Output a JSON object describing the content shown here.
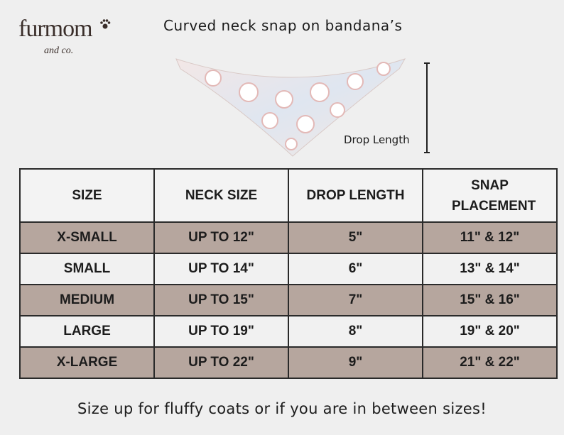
{
  "logo": {
    "name": "furmom",
    "tagline": "and co."
  },
  "title": "Curved neck snap on bandana’s",
  "drop_label": "Drop Length",
  "table": {
    "header": [
      "SIZE",
      "NECK SIZE",
      "DROP LENGTH",
      "SNAP PLACEMENT"
    ],
    "rows": [
      [
        "X-SMALL",
        "UP TO 12\"",
        "5\"",
        "11\" & 12\""
      ],
      [
        "SMALL",
        "UP TO 14\"",
        "6\"",
        "13\" & 14\""
      ],
      [
        "MEDIUM",
        "UP TO 15\"",
        "7\"",
        "15\" & 16\""
      ],
      [
        "LARGE",
        "UP TO 19\"",
        "8\"",
        "19\" & 20\""
      ],
      [
        "X-LARGE",
        "UP TO 22\"",
        "9\"",
        "21\" & 22\""
      ]
    ]
  },
  "footer": "Size up for fluffy coats or if you are in between sizes!"
}
